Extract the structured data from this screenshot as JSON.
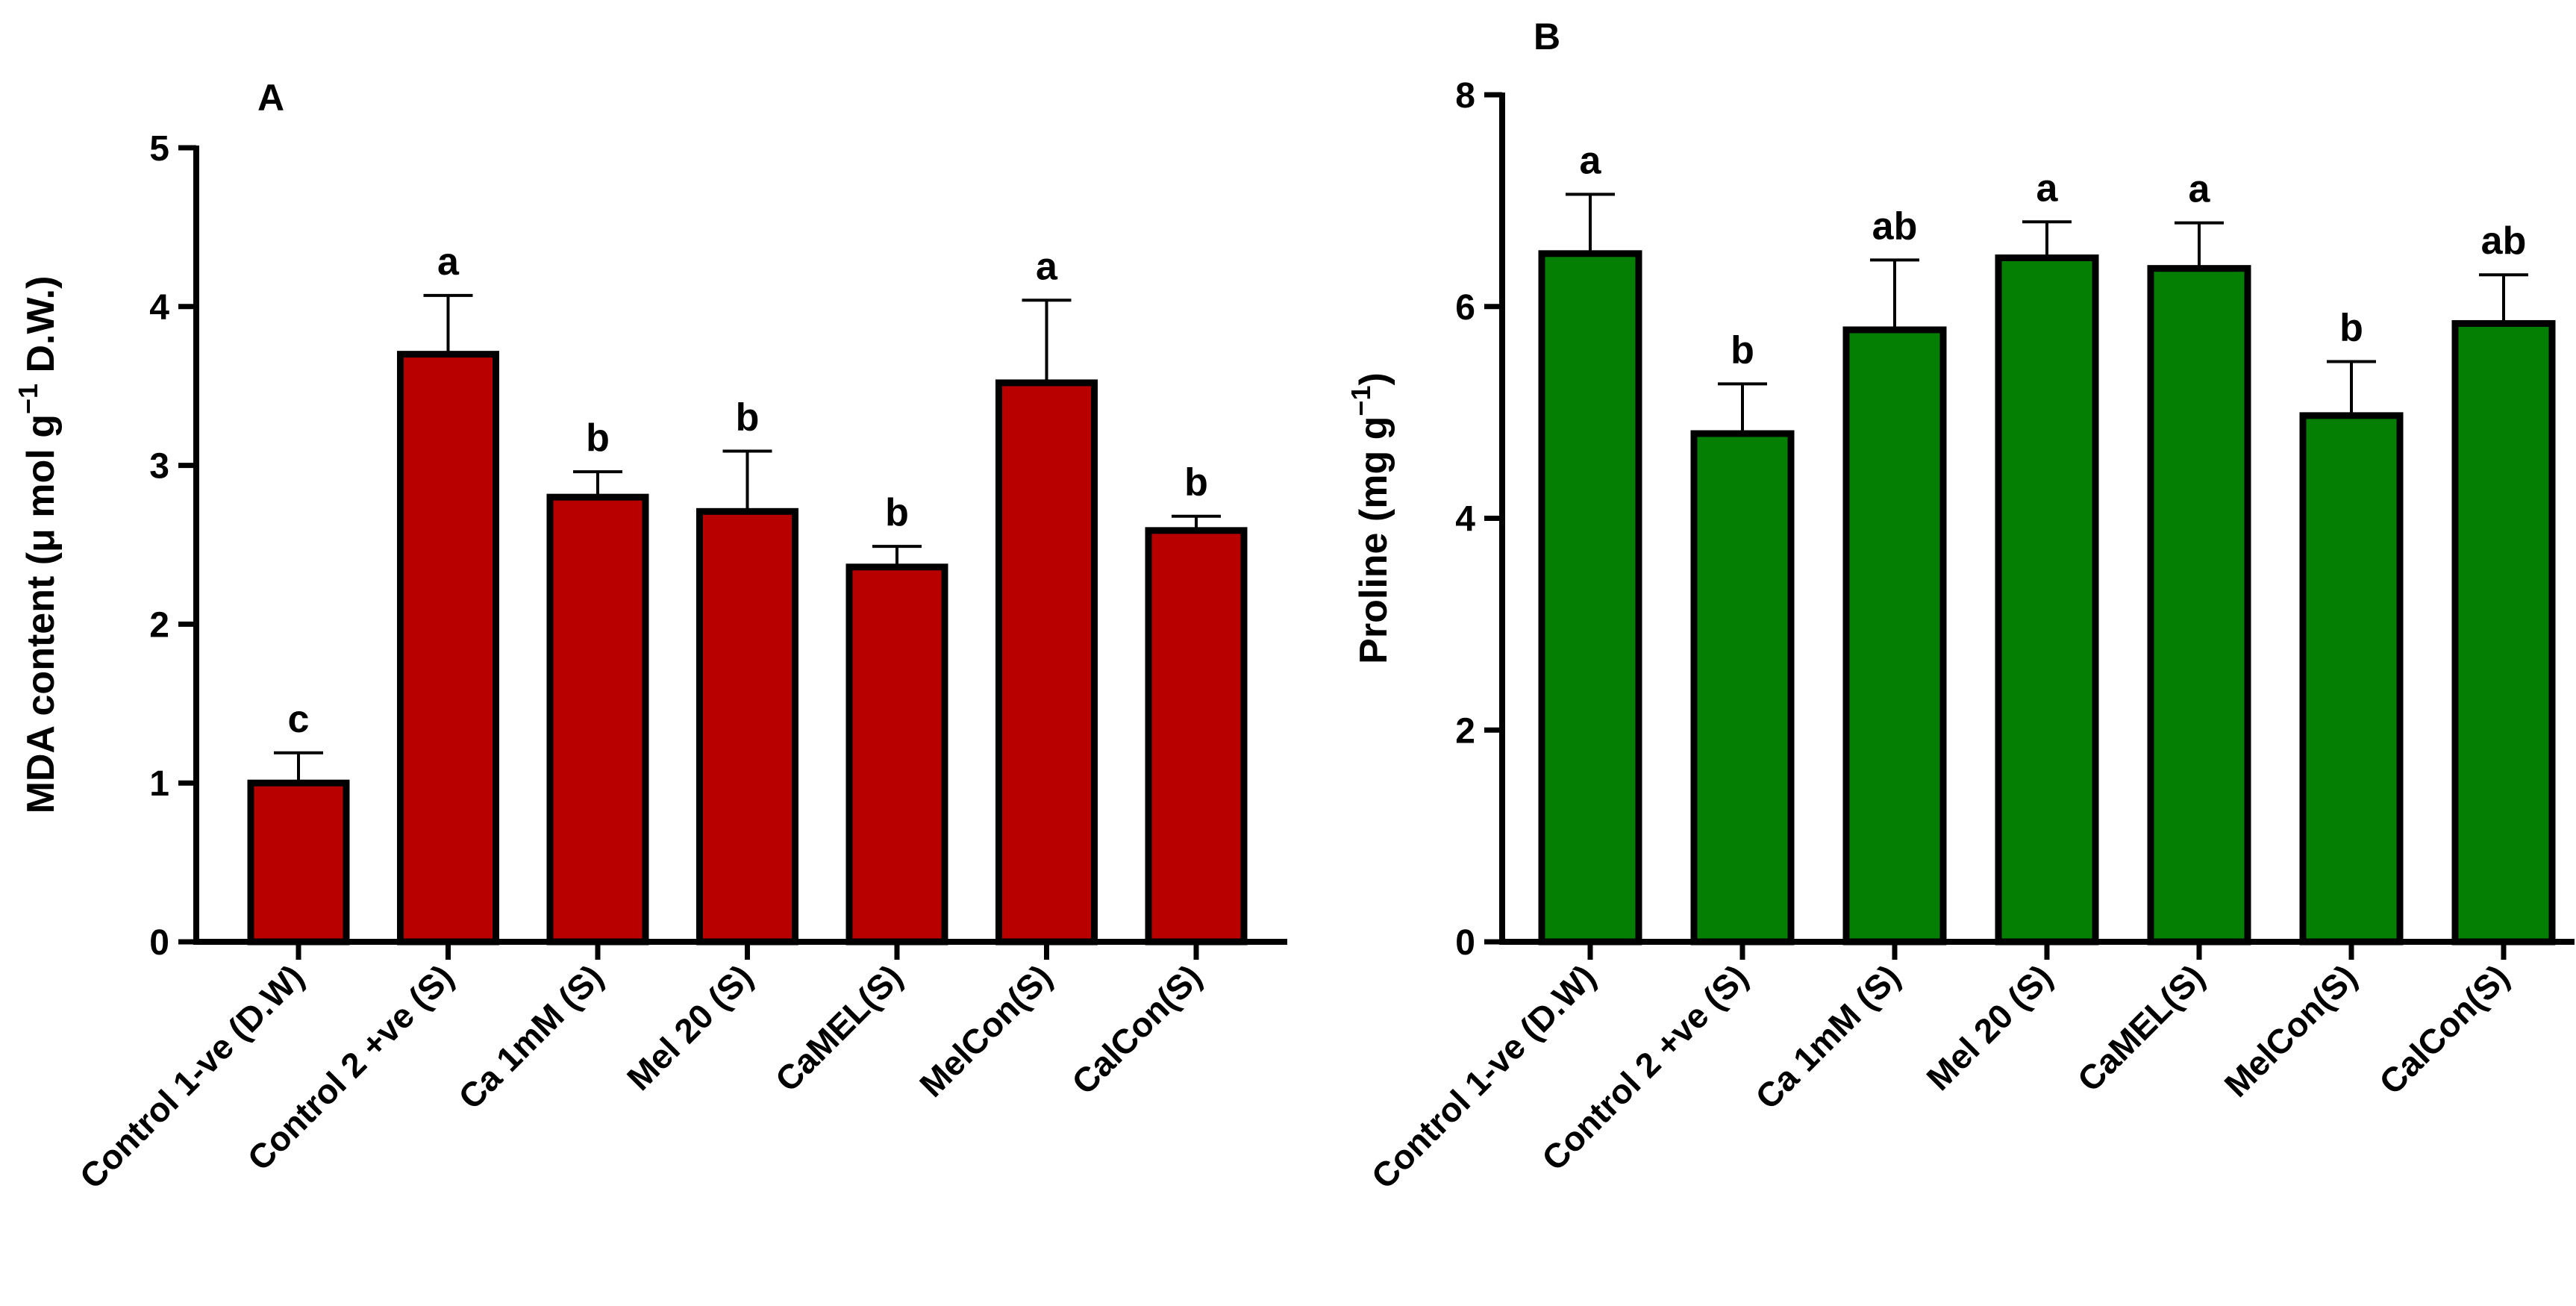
{
  "chart_data": [
    {
      "type": "bar",
      "panel_label": "A",
      "title": "",
      "xlabel": "",
      "ylabel_main": "MDA content (μ mol g",
      "ylabel_sup": "−1",
      "ylabel_tail": " D.W.)",
      "ylim": [
        0,
        5
      ],
      "yticks": [
        "0",
        "1",
        "2",
        "3",
        "4",
        "5"
      ],
      "ytick_values": [
        0,
        1,
        2,
        3,
        4,
        5
      ],
      "bar_color": "#b80000",
      "categories": [
        "Control 1-ve (D.W)",
        "Control 2 +ve (S)",
        "Ca 1mM (S)",
        "Mel 20 (S)",
        "CaMEL(S)",
        "MelCon(S)",
        "CalCon(S)"
      ],
      "values": [
        1.0,
        3.7,
        2.8,
        2.71,
        2.36,
        3.52,
        2.59
      ],
      "errors": [
        0.19,
        0.37,
        0.16,
        0.38,
        0.13,
        0.52,
        0.09
      ],
      "significance": [
        "c",
        "a",
        "b",
        "b",
        "b",
        "a",
        "b"
      ]
    },
    {
      "type": "bar",
      "panel_label": "B",
      "title": "",
      "xlabel": "",
      "ylabel_main": "Proline (mg g",
      "ylabel_sup": "−1",
      "ylabel_tail": ")",
      "ylim": [
        0,
        8
      ],
      "yticks": [
        "0",
        "2",
        "4",
        "6",
        "8"
      ],
      "ytick_values": [
        0,
        2,
        4,
        6,
        8
      ],
      "bar_color": "#047f04",
      "categories": [
        "Control 1-ve (D.W)",
        "Control 2 +ve (S)",
        "Ca 1mM (S)",
        "Mel 20 (S)",
        "CaMEL(S)",
        "MelCon(S)",
        "CalCon(S)"
      ],
      "values": [
        6.5,
        4.8,
        5.78,
        6.46,
        6.36,
        4.97,
        5.84
      ],
      "errors": [
        0.56,
        0.47,
        0.66,
        0.34,
        0.43,
        0.51,
        0.46
      ],
      "significance": [
        "a",
        "b",
        "ab",
        "a",
        "a",
        "b",
        "ab"
      ]
    }
  ]
}
